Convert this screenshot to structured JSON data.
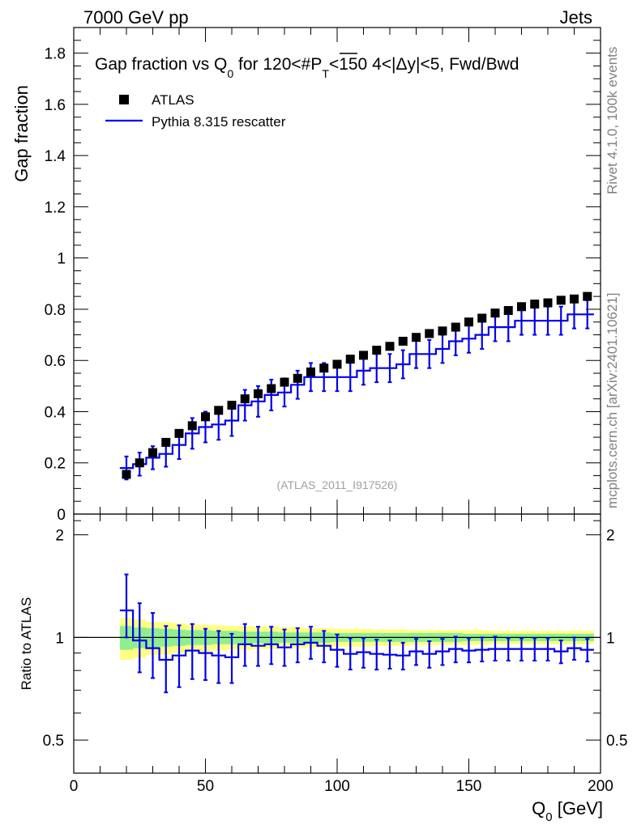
{
  "header": {
    "left": "7000 GeV pp",
    "right": "Jets"
  },
  "side_labels": {
    "rivet": "Rivet 4.1.0,  100k events",
    "mcplots": "mcplots.cern.ch [arXiv:2401.10621]"
  },
  "colors": {
    "data": "#000000",
    "mc": "#0000ee",
    "band_stat": "#90ee90",
    "band_total": "#ffff80"
  },
  "chart_data": [
    {
      "type": "scatter",
      "panel": "main",
      "title": {
        "prefix": "Gap fraction vs Q",
        "q_sub": "0",
        "mid": " for 120<#",
        "p": "P",
        "p_sub": "T",
        "suffix": "<150  4<|Δy|<5, Fwd/Bwd"
      },
      "ylabel": "Gap fraction",
      "ylim": [
        0,
        1.9
      ],
      "yticks": [
        0,
        0.2,
        0.4,
        0.6,
        0.8,
        1,
        1.2,
        1.4,
        1.6,
        1.8
      ],
      "ytick_labels": [
        "0",
        "0.2",
        "0.4",
        "0.6",
        "0.8",
        "1",
        "1.2",
        "1.4",
        "1.6",
        "1.8"
      ],
      "xlim": [
        0,
        200
      ],
      "legend": [
        "ATLAS",
        "Pythia 8.315 rescatter"
      ],
      "legend_position": "top-left",
      "watermark": "(ATLAS_2011_I917526)",
      "bin_edges": [
        17.5,
        22.5,
        27.5,
        32.5,
        37.5,
        42.5,
        47.5,
        52.5,
        57.5,
        62.5,
        67.5,
        72.5,
        77.5,
        82.5,
        87.5,
        92.5,
        97.5,
        102.5,
        107.5,
        112.5,
        117.5,
        122.5,
        127.5,
        132.5,
        137.5,
        142.5,
        147.5,
        152.5,
        157.5,
        162.5,
        167.5,
        172.5,
        177.5,
        182.5,
        187.5,
        192.5,
        197.5
      ],
      "series": [
        {
          "name": "ATLAS",
          "x": [
            20,
            25,
            30,
            35,
            40,
            45,
            50,
            55,
            60,
            65,
            70,
            75,
            80,
            85,
            90,
            95,
            100,
            105,
            110,
            115,
            120,
            125,
            130,
            135,
            140,
            145,
            150,
            155,
            160,
            165,
            170,
            175,
            180,
            185,
            190,
            195
          ],
          "y": [
            0.155,
            0.2,
            0.24,
            0.28,
            0.315,
            0.345,
            0.38,
            0.405,
            0.425,
            0.45,
            0.47,
            0.49,
            0.515,
            0.53,
            0.555,
            0.57,
            0.585,
            0.605,
            0.62,
            0.64,
            0.655,
            0.675,
            0.69,
            0.705,
            0.715,
            0.73,
            0.75,
            0.765,
            0.785,
            0.795,
            0.81,
            0.82,
            0.825,
            0.835,
            0.84,
            0.85
          ]
        },
        {
          "name": "Pythia 8.315 rescatter",
          "x": [
            20,
            25,
            30,
            35,
            40,
            45,
            50,
            55,
            60,
            65,
            70,
            75,
            80,
            85,
            90,
            95,
            100,
            105,
            110,
            115,
            120,
            125,
            130,
            135,
            140,
            145,
            150,
            155,
            160,
            165,
            170,
            175,
            180,
            185,
            190,
            195
          ],
          "y": [
            0.18,
            0.195,
            0.22,
            0.235,
            0.27,
            0.315,
            0.34,
            0.35,
            0.365,
            0.425,
            0.44,
            0.465,
            0.475,
            0.505,
            0.535,
            0.535,
            0.535,
            0.535,
            0.56,
            0.57,
            0.57,
            0.585,
            0.625,
            0.625,
            0.645,
            0.675,
            0.685,
            0.7,
            0.73,
            0.73,
            0.755,
            0.755,
            0.755,
            0.755,
            0.78,
            0.78
          ],
          "yerr": [
            0.045,
            0.045,
            0.045,
            0.05,
            0.055,
            0.06,
            0.06,
            0.06,
            0.06,
            0.06,
            0.06,
            0.06,
            0.055,
            0.055,
            0.055,
            0.055,
            0.055,
            0.055,
            0.055,
            0.055,
            0.055,
            0.055,
            0.055,
            0.055,
            0.055,
            0.055,
            0.055,
            0.055,
            0.055,
            0.055,
            0.055,
            0.055,
            0.055,
            0.055,
            0.055,
            0.055
          ]
        }
      ]
    },
    {
      "type": "line",
      "panel": "ratio",
      "ylabel": "Ratio to ATLAS",
      "xlabel_main": "Q",
      "xlabel_sub": "0",
      "xlabel_unit": " [GeV]",
      "xlim": [
        0,
        200
      ],
      "xticks": [
        0,
        50,
        100,
        150,
        200
      ],
      "xtick_labels": [
        "0",
        "50",
        "100",
        "150",
        "200"
      ],
      "ylim": [
        0.4,
        2.3
      ],
      "yticks": [
        0.5,
        1,
        2
      ],
      "ytick_labels": [
        "0.5",
        "1",
        "2"
      ],
      "reference": 1,
      "band_total_half_width": [
        0.14,
        0.13,
        0.11,
        0.11,
        0.1,
        0.09,
        0.09,
        0.085,
        0.08,
        0.08,
        0.075,
        0.075,
        0.07,
        0.07,
        0.065,
        0.065,
        0.06,
        0.06,
        0.06,
        0.055,
        0.055,
        0.055,
        0.05,
        0.05,
        0.05,
        0.05,
        0.05,
        0.05,
        0.045,
        0.045,
        0.045,
        0.045,
        0.045,
        0.045,
        0.045,
        0.045
      ],
      "band_stat_half_width": [
        0.08,
        0.07,
        0.065,
        0.06,
        0.055,
        0.05,
        0.05,
        0.045,
        0.045,
        0.04,
        0.04,
        0.04,
        0.035,
        0.035,
        0.035,
        0.035,
        0.03,
        0.03,
        0.03,
        0.03,
        0.03,
        0.03,
        0.03,
        0.03,
        0.03,
        0.03,
        0.025,
        0.025,
        0.025,
        0.025,
        0.025,
        0.025,
        0.025,
        0.025,
        0.025,
        0.025
      ],
      "series": [
        {
          "name": "Pythia 8.315 rescatter",
          "x": [
            20,
            25,
            30,
            35,
            40,
            45,
            50,
            55,
            60,
            65,
            70,
            75,
            80,
            85,
            90,
            95,
            100,
            105,
            110,
            115,
            120,
            125,
            130,
            135,
            140,
            145,
            150,
            155,
            160,
            165,
            170,
            175,
            180,
            185,
            190,
            195
          ],
          "y": [
            1.2,
            0.98,
            0.93,
            0.86,
            0.885,
            0.915,
            0.9,
            0.885,
            0.875,
            0.955,
            0.945,
            0.955,
            0.935,
            0.955,
            0.965,
            0.945,
            0.92,
            0.895,
            0.905,
            0.895,
            0.89,
            0.885,
            0.91,
            0.895,
            0.91,
            0.925,
            0.915,
            0.92,
            0.925,
            0.925,
            0.925,
            0.925,
            0.925,
            0.91,
            0.93,
            0.92
          ],
          "yerr_low": [
            0.2,
            0.19,
            0.17,
            0.17,
            0.17,
            0.16,
            0.15,
            0.15,
            0.14,
            0.13,
            0.12,
            0.12,
            0.11,
            0.11,
            0.1,
            0.1,
            0.1,
            0.09,
            0.09,
            0.09,
            0.08,
            0.08,
            0.08,
            0.08,
            0.08,
            0.08,
            0.07,
            0.07,
            0.07,
            0.07,
            0.07,
            0.07,
            0.07,
            0.07,
            0.07,
            0.07
          ],
          "yerr_high": [
            0.33,
            0.28,
            0.25,
            0.22,
            0.2,
            0.18,
            0.16,
            0.16,
            0.15,
            0.14,
            0.13,
            0.12,
            0.12,
            0.11,
            0.11,
            0.1,
            0.1,
            0.1,
            0.09,
            0.09,
            0.09,
            0.08,
            0.08,
            0.08,
            0.08,
            0.08,
            0.08,
            0.08,
            0.08,
            0.07,
            0.07,
            0.07,
            0.07,
            0.07,
            0.07,
            0.07
          ]
        }
      ]
    }
  ]
}
